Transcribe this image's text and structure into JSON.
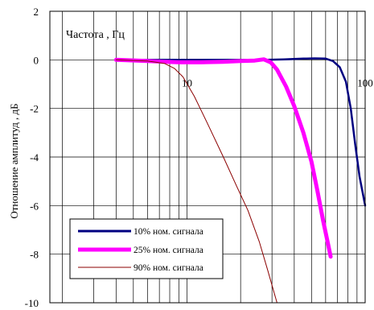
{
  "chart_data": {
    "type": "line",
    "x_scale": "log",
    "xlim": [
      1.7,
      100
    ],
    "ylim": [
      -10,
      2
    ],
    "grid": true,
    "xlabel": "Частота , Гц",
    "ylabel": "Отношение амплитуд , дБ",
    "x_tick_labels": [
      {
        "value": 10,
        "label": "10"
      },
      {
        "value": 100,
        "label": "100"
      }
    ],
    "y_ticks": [
      2,
      0,
      -2,
      -4,
      -6,
      -8,
      -10
    ],
    "legend_position": "bottom-left",
    "series": [
      {
        "name": "10% ном. сигнала",
        "color": "#000080",
        "points": [
          [
            4,
            0
          ],
          [
            8,
            0
          ],
          [
            15,
            0
          ],
          [
            28,
            0
          ],
          [
            35,
            0.02
          ],
          [
            45,
            0.05
          ],
          [
            52,
            0.06
          ],
          [
            60,
            0.05
          ],
          [
            66,
            -0.05
          ],
          [
            72,
            -0.3
          ],
          [
            78,
            -0.9
          ],
          [
            83,
            -2.0
          ],
          [
            88,
            -3.5
          ],
          [
            93,
            -4.8
          ],
          [
            100,
            -6.0
          ]
        ]
      },
      {
        "name": "25% ном. сигнала",
        "color": "#ff00ff",
        "points": [
          [
            4,
            0
          ],
          [
            6,
            -0.05
          ],
          [
            9,
            -0.1
          ],
          [
            12,
            -0.1
          ],
          [
            16,
            -0.08
          ],
          [
            20,
            -0.05
          ],
          [
            24,
            -0.03
          ],
          [
            27,
            0.02
          ],
          [
            29.5,
            -0.1
          ],
          [
            32,
            -0.4
          ],
          [
            36,
            -1.1
          ],
          [
            40,
            -1.9
          ],
          [
            45,
            -3.0
          ],
          [
            50,
            -4.2
          ],
          [
            54,
            -5.4
          ],
          [
            58,
            -6.6
          ],
          [
            62,
            -7.6
          ],
          [
            64,
            -8.1
          ]
        ]
      },
      {
        "name": "90% ном. сигнала",
        "color": "#8b0000",
        "points": [
          [
            4,
            0
          ],
          [
            6,
            -0.05
          ],
          [
            7.5,
            -0.15
          ],
          [
            8.5,
            -0.35
          ],
          [
            9.5,
            -0.7
          ],
          [
            11,
            -1.5
          ],
          [
            13,
            -2.6
          ],
          [
            16,
            -4.0
          ],
          [
            19,
            -5.2
          ],
          [
            22,
            -6.2
          ],
          [
            25.5,
            -7.5
          ],
          [
            28.5,
            -8.7
          ],
          [
            32,
            -10.0
          ]
        ]
      }
    ]
  },
  "legend_items": [
    {
      "label": "10% ном. сигнала",
      "color": "#000080"
    },
    {
      "label": "25% ном. сигнала",
      "color": "#ff00ff"
    },
    {
      "label": "90% ном. сигнала",
      "color": "#8b0000"
    }
  ]
}
